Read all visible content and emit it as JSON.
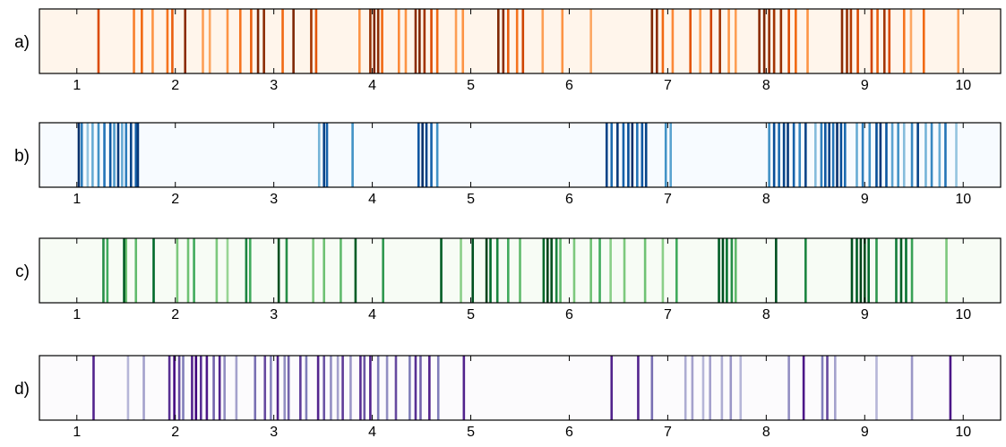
{
  "chart_data": [
    {
      "type": "heatmap",
      "panel_label": "a)",
      "colormap": "Oranges",
      "background_color": "#fff5eb",
      "xlim": [
        0.62,
        10.38
      ],
      "ticks": [
        1,
        2,
        3,
        4,
        5,
        6,
        7,
        8,
        9,
        10
      ],
      "tick_labels": [
        "1",
        "2",
        "3",
        "4",
        "5",
        "6",
        "7",
        "8",
        "9",
        "10"
      ],
      "events": [
        [
          1.22,
          0.65
        ],
        [
          1.58,
          0.4
        ],
        [
          1.66,
          0.5
        ],
        [
          1.77,
          0.3
        ],
        [
          1.92,
          0.45
        ],
        [
          1.97,
          0.55
        ],
        [
          2.1,
          0.95
        ],
        [
          2.28,
          0.25
        ],
        [
          2.35,
          0.2
        ],
        [
          2.53,
          0.3
        ],
        [
          2.66,
          0.45
        ],
        [
          2.77,
          0.55
        ],
        [
          2.84,
          1.0
        ],
        [
          2.9,
          0.95
        ],
        [
          3.09,
          0.5
        ],
        [
          3.2,
          1.0
        ],
        [
          3.38,
          0.85
        ],
        [
          3.43,
          0.6
        ],
        [
          3.87,
          0.3
        ],
        [
          3.98,
          0.9
        ],
        [
          4.02,
          1.0
        ],
        [
          4.06,
          0.95
        ],
        [
          4.1,
          0.5
        ],
        [
          4.27,
          0.35
        ],
        [
          4.34,
          0.3
        ],
        [
          4.44,
          0.95
        ],
        [
          4.48,
          1.0
        ],
        [
          4.53,
          0.85
        ],
        [
          4.6,
          0.65
        ],
        [
          4.66,
          0.5
        ],
        [
          4.85,
          0.25
        ],
        [
          4.92,
          0.3
        ],
        [
          5.28,
          1.0
        ],
        [
          5.33,
          0.95
        ],
        [
          5.38,
          0.55
        ],
        [
          5.47,
          0.45
        ],
        [
          5.53,
          0.7
        ],
        [
          5.73,
          0.25
        ],
        [
          5.93,
          0.3
        ],
        [
          6.22,
          0.2
        ],
        [
          6.84,
          1.0
        ],
        [
          6.89,
          0.95
        ],
        [
          6.95,
          0.5
        ],
        [
          7.05,
          0.35
        ],
        [
          7.23,
          0.6
        ],
        [
          7.33,
          0.25
        ],
        [
          7.44,
          0.7
        ],
        [
          7.53,
          0.85
        ],
        [
          7.62,
          0.3
        ],
        [
          7.69,
          0.25
        ],
        [
          7.93,
          0.95
        ],
        [
          7.98,
          1.0
        ],
        [
          8.03,
          0.9
        ],
        [
          8.08,
          0.85
        ],
        [
          8.15,
          0.9
        ],
        [
          8.23,
          0.65
        ],
        [
          8.3,
          0.5
        ],
        [
          8.42,
          0.3
        ],
        [
          8.77,
          0.95
        ],
        [
          8.82,
          0.9
        ],
        [
          8.86,
          0.8
        ],
        [
          8.93,
          0.65
        ],
        [
          9.07,
          0.7
        ],
        [
          9.13,
          0.55
        ],
        [
          9.2,
          0.85
        ],
        [
          9.25,
          0.65
        ],
        [
          9.4,
          0.45
        ],
        [
          9.47,
          0.2
        ],
        [
          9.6,
          0.5
        ],
        [
          9.95,
          0.25
        ]
      ]
    },
    {
      "type": "heatmap",
      "panel_label": "b)",
      "colormap": "Blues",
      "background_color": "#f7fbff",
      "xlim": [
        0.62,
        10.38
      ],
      "ticks": [
        1,
        2,
        3,
        4,
        5,
        6,
        7,
        8,
        9,
        10
      ],
      "tick_labels": [
        "1",
        "2",
        "3",
        "4",
        "5",
        "6",
        "7",
        "8",
        "9",
        "10"
      ],
      "events": [
        [
          1.02,
          1.0
        ],
        [
          1.05,
          0.6
        ],
        [
          1.11,
          0.2
        ],
        [
          1.16,
          0.35
        ],
        [
          1.22,
          0.5
        ],
        [
          1.28,
          0.65
        ],
        [
          1.34,
          0.8
        ],
        [
          1.38,
          0.45
        ],
        [
          1.42,
          0.95
        ],
        [
          1.46,
          0.35
        ],
        [
          1.5,
          0.6
        ],
        [
          1.55,
          0.9
        ],
        [
          1.6,
          0.75
        ],
        [
          1.62,
          0.95
        ],
        [
          3.46,
          0.3
        ],
        [
          3.51,
          0.9
        ],
        [
          3.54,
          0.75
        ],
        [
          3.8,
          0.5
        ],
        [
          4.47,
          0.8
        ],
        [
          4.51,
          1.0
        ],
        [
          4.55,
          0.9
        ],
        [
          4.6,
          0.75
        ],
        [
          4.66,
          0.5
        ],
        [
          6.38,
          0.9
        ],
        [
          6.43,
          0.7
        ],
        [
          6.49,
          0.95
        ],
        [
          6.55,
          0.75
        ],
        [
          6.6,
          0.85
        ],
        [
          6.64,
          1.0
        ],
        [
          6.69,
          0.65
        ],
        [
          6.74,
          0.8
        ],
        [
          6.78,
          0.9
        ],
        [
          6.98,
          0.5
        ],
        [
          7.03,
          0.4
        ],
        [
          8.03,
          0.5
        ],
        [
          8.08,
          0.85
        ],
        [
          8.13,
          0.7
        ],
        [
          8.18,
          0.9
        ],
        [
          8.22,
          0.95
        ],
        [
          8.28,
          0.75
        ],
        [
          8.34,
          0.55
        ],
        [
          8.4,
          0.9
        ],
        [
          8.5,
          0.25
        ],
        [
          8.56,
          0.6
        ],
        [
          8.6,
          0.8
        ],
        [
          8.64,
          0.9
        ],
        [
          8.68,
          0.65
        ],
        [
          8.72,
          1.0
        ],
        [
          8.76,
          0.85
        ],
        [
          8.8,
          0.7
        ],
        [
          8.92,
          0.35
        ],
        [
          8.98,
          0.6
        ],
        [
          9.05,
          0.5
        ],
        [
          9.12,
          0.85
        ],
        [
          9.16,
          0.95
        ],
        [
          9.22,
          0.8
        ],
        [
          9.28,
          0.4
        ],
        [
          9.34,
          0.5
        ],
        [
          9.4,
          0.25
        ],
        [
          9.48,
          0.55
        ],
        [
          9.54,
          0.9
        ],
        [
          9.62,
          0.3
        ],
        [
          9.68,
          0.55
        ],
        [
          9.76,
          0.35
        ],
        [
          9.82,
          0.65
        ],
        [
          9.93,
          0.2
        ]
      ]
    },
    {
      "type": "heatmap",
      "panel_label": "c)",
      "colormap": "Greens",
      "background_color": "#f7fcf5",
      "xlim": [
        0.62,
        10.38
      ],
      "ticks": [
        1,
        2,
        3,
        4,
        5,
        6,
        7,
        8,
        9,
        10
      ],
      "tick_labels": [
        "1",
        "2",
        "3",
        "4",
        "5",
        "6",
        "7",
        "8",
        "9",
        "10"
      ],
      "events": [
        [
          1.27,
          0.65
        ],
        [
          1.31,
          0.5
        ],
        [
          1.48,
          0.9
        ],
        [
          1.5,
          0.35
        ],
        [
          1.6,
          0.4
        ],
        [
          1.78,
          0.85
        ],
        [
          2.02,
          0.3
        ],
        [
          2.13,
          0.35
        ],
        [
          2.19,
          0.5
        ],
        [
          2.42,
          0.3
        ],
        [
          2.53,
          0.2
        ],
        [
          2.72,
          0.7
        ],
        [
          2.76,
          0.5
        ],
        [
          3.05,
          0.95
        ],
        [
          3.13,
          0.65
        ],
        [
          3.4,
          0.3
        ],
        [
          3.51,
          0.35
        ],
        [
          3.68,
          0.4
        ],
        [
          3.83,
          0.9
        ],
        [
          4.11,
          0.6
        ],
        [
          4.7,
          0.9
        ],
        [
          4.9,
          0.25
        ],
        [
          5.02,
          0.95
        ],
        [
          5.16,
          1.0
        ],
        [
          5.2,
          0.85
        ],
        [
          5.27,
          0.7
        ],
        [
          5.38,
          0.5
        ],
        [
          5.5,
          0.4
        ],
        [
          5.74,
          0.85
        ],
        [
          5.78,
          1.0
        ],
        [
          5.82,
          0.95
        ],
        [
          5.87,
          0.7
        ],
        [
          5.91,
          0.4
        ],
        [
          6.05,
          0.3
        ],
        [
          6.22,
          0.35
        ],
        [
          6.31,
          0.5
        ],
        [
          6.42,
          0.25
        ],
        [
          6.56,
          0.3
        ],
        [
          6.77,
          0.35
        ],
        [
          6.95,
          0.25
        ],
        [
          7.09,
          0.5
        ],
        [
          7.52,
          0.9
        ],
        [
          7.56,
          0.95
        ],
        [
          7.6,
          0.8
        ],
        [
          7.65,
          0.65
        ],
        [
          7.69,
          0.4
        ],
        [
          8.1,
          0.95
        ],
        [
          8.4,
          0.7
        ],
        [
          8.87,
          0.95
        ],
        [
          8.92,
          0.9
        ],
        [
          8.96,
          1.0
        ],
        [
          9.0,
          0.95
        ],
        [
          9.04,
          0.85
        ],
        [
          9.12,
          0.6
        ],
        [
          9.32,
          0.75
        ],
        [
          9.37,
          0.9
        ],
        [
          9.42,
          0.8
        ],
        [
          9.48,
          0.55
        ],
        [
          9.83,
          0.3
        ]
      ]
    },
    {
      "type": "heatmap",
      "panel_label": "d)",
      "colormap": "Purples",
      "background_color": "#fcfbfd",
      "xlim": [
        0.62,
        10.38
      ],
      "ticks": [
        1,
        2,
        3,
        4,
        5,
        6,
        7,
        8,
        9,
        10
      ],
      "tick_labels": [
        "1",
        "2",
        "3",
        "4",
        "5",
        "6",
        "7",
        "8",
        "9",
        "10"
      ],
      "events": [
        [
          1.17,
          0.85
        ],
        [
          1.52,
          0.2
        ],
        [
          1.68,
          0.3
        ],
        [
          1.94,
          0.8
        ],
        [
          1.99,
          0.95
        ],
        [
          2.04,
          0.7
        ],
        [
          2.08,
          0.5
        ],
        [
          2.17,
          0.85
        ],
        [
          2.21,
          1.0
        ],
        [
          2.26,
          0.8
        ],
        [
          2.32,
          0.9
        ],
        [
          2.39,
          0.6
        ],
        [
          2.45,
          0.85
        ],
        [
          2.5,
          0.4
        ],
        [
          2.62,
          0.3
        ],
        [
          2.81,
          0.55
        ],
        [
          2.91,
          0.7
        ],
        [
          2.97,
          0.45
        ],
        [
          3.04,
          0.85
        ],
        [
          3.11,
          0.4
        ],
        [
          3.15,
          0.6
        ],
        [
          3.27,
          0.75
        ],
        [
          3.33,
          0.5
        ],
        [
          3.45,
          0.85
        ],
        [
          3.51,
          0.65
        ],
        [
          3.58,
          0.4
        ],
        [
          3.65,
          0.3
        ],
        [
          3.7,
          0.75
        ],
        [
          3.78,
          0.35
        ],
        [
          3.88,
          0.8
        ],
        [
          3.92,
          0.65
        ],
        [
          3.98,
          0.85
        ],
        [
          4.06,
          0.5
        ],
        [
          4.15,
          0.4
        ],
        [
          4.24,
          0.7
        ],
        [
          4.38,
          0.5
        ],
        [
          4.44,
          0.8
        ],
        [
          4.49,
          0.6
        ],
        [
          4.58,
          0.85
        ],
        [
          4.67,
          0.5
        ],
        [
          4.93,
          0.85
        ],
        [
          6.43,
          0.85
        ],
        [
          6.7,
          0.85
        ],
        [
          6.84,
          0.55
        ],
        [
          7.18,
          0.25
        ],
        [
          7.25,
          0.3
        ],
        [
          7.36,
          0.2
        ],
        [
          7.43,
          0.3
        ],
        [
          7.55,
          0.25
        ],
        [
          7.64,
          0.35
        ],
        [
          7.74,
          0.2
        ],
        [
          8.23,
          0.4
        ],
        [
          8.38,
          0.9
        ],
        [
          8.57,
          0.5
        ],
        [
          8.62,
          0.7
        ],
        [
          8.7,
          0.3
        ],
        [
          9.12,
          0.2
        ],
        [
          9.48,
          0.35
        ],
        [
          9.87,
          0.9
        ]
      ]
    }
  ]
}
